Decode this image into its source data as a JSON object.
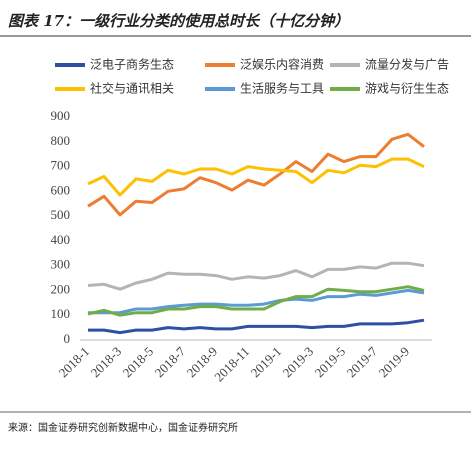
{
  "chart_data": {
    "type": "line",
    "title": "图表 17：一级行业分类的使用总时长（十亿分钟）",
    "categories": [
      "2018-1",
      null,
      "2018-3",
      null,
      "2018-5",
      null,
      "2018-7",
      null,
      "2018-9",
      null,
      "2018-11",
      null,
      "2019-1",
      null,
      "2019-3",
      null,
      "2019-5",
      null,
      "2019-7",
      null,
      "2019-9",
      null
    ],
    "series": [
      {
        "name": "泛电子商务生态",
        "color": "#2e4fa3",
        "values": [
          40,
          40,
          30,
          40,
          40,
          50,
          45,
          50,
          45,
          45,
          55,
          55,
          55,
          55,
          50,
          55,
          55,
          65,
          65,
          65,
          70,
          80
        ]
      },
      {
        "name": "泛娱乐内容消费",
        "color": "#ed7d31",
        "values": [
          540,
          580,
          505,
          560,
          555,
          600,
          610,
          655,
          635,
          605,
          645,
          625,
          670,
          720,
          680,
          750,
          720,
          740,
          740,
          810,
          830,
          780
        ]
      },
      {
        "name": "流量分发与广告",
        "color": "#b4b4b4",
        "values": [
          220,
          225,
          205,
          230,
          245,
          270,
          265,
          265,
          260,
          245,
          255,
          250,
          260,
          280,
          255,
          285,
          285,
          295,
          290,
          310,
          310,
          300
        ]
      },
      {
        "name": "社交与通讯相关",
        "color": "#ffc000",
        "values": [
          630,
          660,
          585,
          650,
          640,
          685,
          670,
          690,
          690,
          670,
          700,
          690,
          685,
          680,
          635,
          685,
          675,
          705,
          700,
          730,
          730,
          700
        ]
      },
      {
        "name": "生活服务与工具",
        "color": "#5b9bd5",
        "values": [
          110,
          110,
          110,
          125,
          125,
          135,
          140,
          145,
          145,
          140,
          140,
          145,
          160,
          165,
          160,
          175,
          175,
          185,
          180,
          190,
          200,
          190
        ]
      },
      {
        "name": "游戏与衍生生态",
        "color": "#70ad47",
        "values": [
          105,
          120,
          100,
          110,
          110,
          125,
          125,
          135,
          135,
          125,
          125,
          125,
          155,
          175,
          175,
          205,
          200,
          195,
          195,
          205,
          215,
          200
        ]
      }
    ],
    "ylim": [
      0,
      900
    ],
    "yticks": [
      0,
      100,
      200,
      300,
      400,
      500,
      600,
      700,
      800,
      900
    ],
    "source": "来源：国金证券研究创新数据中心，国金证券研究所"
  }
}
